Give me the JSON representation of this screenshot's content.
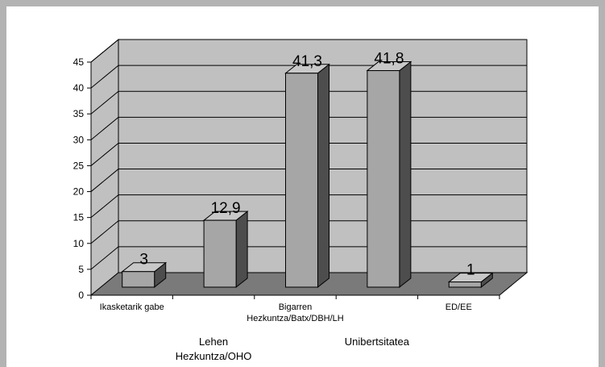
{
  "chart_data": {
    "type": "bar",
    "categories": [
      "Ikasketarik gabe",
      "Lehen Hezkuntza/OHO",
      "Bigarren Hezkuntza/Batx/DBH/LH",
      "Unibertsitatea",
      "ED/EE"
    ],
    "category_label_lines": [
      [
        "Ikasketarik gabe"
      ],
      [
        "Lehen",
        "Hezkuntza/OHO"
      ],
      [
        "Bigarren",
        "Hezkuntza/Batx/DBH/LH"
      ],
      [
        "Unibertsitatea"
      ],
      [
        "ED/EE"
      ]
    ],
    "values": [
      3,
      12.9,
      41.3,
      41.8,
      1
    ],
    "value_labels": [
      "3",
      "12,9",
      "41,3",
      "41,8",
      "1"
    ],
    "yticks": [
      "0",
      "5",
      "10",
      "15",
      "20",
      "25",
      "30",
      "35",
      "40",
      "45"
    ],
    "ylim": [
      0,
      45
    ],
    "grid": true,
    "legend": "none",
    "three_d": true,
    "colors": {
      "frame": "#b3b3b3",
      "wall": "#c0c0c0",
      "floor": "#7a7a7a",
      "bar_front": "#a6a6a6",
      "bar_top": "#c8c8c8",
      "bar_side": "#4d4d4d",
      "grid": "#000000"
    }
  }
}
